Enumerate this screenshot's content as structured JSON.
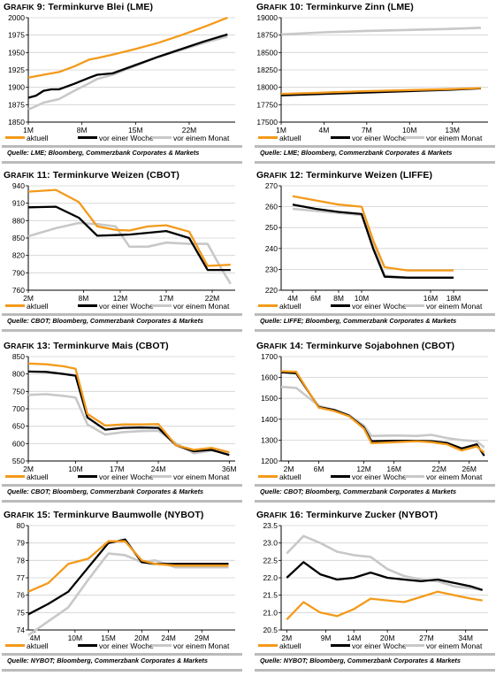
{
  "legend_labels": {
    "aktuell": "aktuell",
    "week": "vor einer Woche",
    "month": "vor einem Monat"
  },
  "colors": {
    "aktuell": "#f39a1a",
    "week": "#000000",
    "month": "#c8c8c8"
  },
  "panels": [
    {
      "prefix": "G",
      "prefix_small": "RAFIK",
      "num": " 9: ",
      "title": "Terminkurve Blei (LME)",
      "source": "Quelle: LME; Bloomberg, Commerzbank Corporates & Markets"
    },
    {
      "prefix": "G",
      "prefix_small": "RAFIK",
      "num": " 10: ",
      "title": "Terminkurve Zinn (LME)",
      "source": "Quelle: LME; Bloomberg, Commerzbank Corporates & Markets"
    },
    {
      "prefix": "G",
      "prefix_small": "RAFIK",
      "num": " 11: ",
      "title": "Terminkurve Weizen (CBOT)",
      "source": "Quelle: CBOT; Bloomberg, Commerzbank Corporates & Markets"
    },
    {
      "prefix": "G",
      "prefix_small": "RAFIK",
      "num": " 12: ",
      "title": "Terminkurve Weizen (LIFFE)",
      "source": "Quelle: LIFFE; Bloomberg, Commerzbank Corporates & Markets"
    },
    {
      "prefix": "G",
      "prefix_small": "RAFIK",
      "num": " 13:  ",
      "title": "Terminkurve Mais (CBOT)",
      "source": "Quelle: CBOT; Bloomberg, Commerzbank Corporates & Markets"
    },
    {
      "prefix": "G",
      "prefix_small": "RAFIK",
      "num": " 14: ",
      "title": "Terminkurve Sojabohnen (CBOT)",
      "source": "Quelle: CBOT; Bloomberg, Commerzbank Corporates & Markets"
    },
    {
      "prefix": "G",
      "prefix_small": "RAFIK",
      "num": " 15: ",
      "title": "Terminkurve Baumwolle (NYBOT)",
      "source": "Quelle: NYBOT; Bloomberg, Commerzbank Corporates & Markets"
    },
    {
      "prefix": "G",
      "prefix_small": "RAFIK",
      "num": " 16: ",
      "title": "Terminkurve Zucker (NYBOT)",
      "source": "Quelle: NYBOT; Bloomberg, Commerzbank Corporates & Markets"
    }
  ],
  "chart_data": [
    {
      "type": "line",
      "title": "Terminkurve Blei (LME)",
      "ylim": [
        1850,
        2000
      ],
      "yticks": [
        1850,
        1875,
        1900,
        1925,
        1950,
        1975,
        2000
      ],
      "xlim": [
        1,
        28
      ],
      "xticks": [
        1,
        8,
        15,
        22
      ],
      "xticklabels": [
        "1M",
        "8M",
        "15M",
        "22M"
      ],
      "series": [
        {
          "name": "aktuell",
          "x": [
            1,
            3,
            5,
            7,
            8,
            9,
            10,
            12,
            15,
            18,
            21,
            24,
            27
          ],
          "values": [
            1914,
            1918,
            1922,
            1930,
            1935,
            1940,
            1942,
            1947,
            1955,
            1964,
            1975,
            1987,
            2000
          ]
        },
        {
          "name": "vor einer Woche",
          "x": [
            1,
            2,
            3,
            4,
            5,
            7,
            9,
            10,
            12,
            15,
            18,
            21,
            24,
            27
          ],
          "values": [
            1885,
            1888,
            1895,
            1897,
            1897,
            1905,
            1914,
            1918,
            1920,
            1932,
            1944,
            1955,
            1966,
            1976
          ]
        },
        {
          "name": "vor einem Monat",
          "x": [
            1,
            2,
            3,
            5,
            7,
            9,
            10,
            12,
            15,
            18,
            21,
            24,
            27
          ],
          "values": [
            1868,
            1873,
            1878,
            1883,
            1895,
            1906,
            1912,
            1918,
            1931,
            1944,
            1954,
            1964,
            1973
          ]
        }
      ]
    },
    {
      "type": "line",
      "title": "Terminkurve Zinn (LME)",
      "ylim": [
        17500,
        19000
      ],
      "yticks": [
        17500,
        17750,
        18000,
        18250,
        18500,
        18750,
        19000
      ],
      "xlim": [
        1,
        15.5
      ],
      "xticks": [
        1,
        4,
        7,
        10,
        13
      ],
      "xticklabels": [
        "1M",
        "4M",
        "7M",
        "10M",
        "13M"
      ],
      "series": [
        {
          "name": "aktuell",
          "x": [
            1,
            4,
            7,
            10,
            13,
            15
          ],
          "values": [
            17905,
            17925,
            17945,
            17960,
            17975,
            17990
          ]
        },
        {
          "name": "vor einer Woche",
          "x": [
            1,
            4,
            7,
            10,
            13,
            15
          ],
          "values": [
            17885,
            17905,
            17925,
            17945,
            17965,
            17985
          ]
        },
        {
          "name": "vor einem Monat",
          "x": [
            1,
            4,
            7,
            10,
            13,
            15
          ],
          "values": [
            18760,
            18790,
            18810,
            18825,
            18840,
            18855
          ]
        }
      ]
    },
    {
      "type": "line",
      "title": "Terminkurve Weizen (CBOT)",
      "ylim": [
        760,
        940
      ],
      "yticks": [
        760,
        790,
        820,
        850,
        880,
        910,
        940
      ],
      "xlim": [
        2,
        24.5
      ],
      "xticks": [
        2,
        8,
        12,
        17,
        22
      ],
      "xticklabels": [
        "2M",
        "8M",
        "12M",
        "17M",
        "22M"
      ],
      "series": [
        {
          "name": "aktuell",
          "x": [
            2,
            5,
            7.5,
            9.5,
            11.5,
            13,
            15,
            17,
            19.5,
            21.5,
            24
          ],
          "values": [
            930,
            933,
            912,
            870,
            864,
            863,
            870,
            872,
            861,
            802,
            804
          ]
        },
        {
          "name": "vor einer Woche",
          "x": [
            2,
            5,
            7.5,
            9.5,
            11.5,
            13,
            15,
            17,
            19.5,
            21.5,
            24
          ],
          "values": [
            903,
            904,
            885,
            854,
            855,
            856,
            859,
            862,
            850,
            795,
            795
          ]
        },
        {
          "name": "vor einem Monat",
          "x": [
            2,
            5,
            7.5,
            9.5,
            11.5,
            13,
            15,
            17,
            19.5,
            21.5,
            23,
            24
          ],
          "values": [
            853,
            867,
            876,
            874,
            870,
            835,
            835,
            842,
            840,
            840,
            797,
            771
          ]
        }
      ]
    },
    {
      "type": "line",
      "title": "Terminkurve Weizen (LIFFE)",
      "ylim": [
        220,
        270
      ],
      "yticks": [
        220,
        230,
        240,
        250,
        260,
        270
      ],
      "xlim": [
        3,
        21
      ],
      "xticks": [
        4,
        6,
        8,
        10,
        16,
        18
      ],
      "xticklabels": [
        "4M",
        "6M",
        "8M",
        "10M",
        "16M",
        "18M"
      ],
      "series": [
        {
          "name": "aktuell",
          "x": [
            4,
            6,
            8,
            10,
            11,
            12,
            14,
            16,
            18
          ],
          "values": [
            265,
            263,
            261,
            260,
            244,
            231,
            229.5,
            229.5,
            229.5
          ]
        },
        {
          "name": "vor einer Woche",
          "x": [
            4,
            6,
            8,
            10,
            11,
            12,
            14,
            16,
            18
          ],
          "values": [
            261,
            259,
            257.5,
            256.5,
            240,
            226.5,
            226,
            226,
            226
          ]
        },
        {
          "name": "vor einem Monat",
          "x": [
            4,
            6,
            8,
            10,
            11,
            12,
            14,
            16,
            18
          ],
          "values": [
            259,
            258,
            257,
            256,
            242,
            227,
            226,
            226,
            226
          ]
        }
      ]
    },
    {
      "type": "line",
      "title": "Terminkurve Mais (CBOT)",
      "ylim": [
        550,
        850
      ],
      "yticks": [
        550,
        600,
        650,
        700,
        750,
        800,
        850
      ],
      "xlim": [
        2,
        37
      ],
      "xticks": [
        2,
        10,
        17,
        24,
        36
      ],
      "xticklabels": [
        "2M",
        "10M",
        "17M",
        "24M",
        "36M"
      ],
      "series": [
        {
          "name": "aktuell",
          "x": [
            2,
            5,
            8,
            10,
            12,
            15,
            18,
            21,
            24,
            27,
            30,
            33,
            36
          ],
          "values": [
            830,
            828,
            822,
            815,
            685,
            652,
            655,
            655,
            656,
            595,
            582,
            588,
            575
          ]
        },
        {
          "name": "vor einer Woche",
          "x": [
            2,
            5,
            8,
            10,
            12,
            15,
            18,
            21,
            24,
            27,
            30,
            33,
            36
          ],
          "values": [
            807,
            806,
            800,
            795,
            675,
            640,
            645,
            646,
            645,
            595,
            578,
            582,
            567
          ]
        },
        {
          "name": "vor einem Monat",
          "x": [
            2,
            5,
            8,
            10,
            12,
            15,
            18,
            21,
            24,
            27,
            30,
            33,
            36
          ],
          "values": [
            740,
            742,
            737,
            732,
            655,
            626,
            633,
            636,
            637,
            600,
            572,
            580,
            572
          ]
        }
      ]
    },
    {
      "type": "line",
      "title": "Terminkurve Sojabohnen (CBOT)",
      "ylim": [
        1200,
        1700
      ],
      "yticks": [
        1200,
        1300,
        1400,
        1500,
        1600,
        1700
      ],
      "xlim": [
        1,
        28.5
      ],
      "xticks": [
        2,
        6,
        12,
        16,
        22,
        26
      ],
      "xticklabels": [
        "2M",
        "6M",
        "12M",
        "16M",
        "22M",
        "26M"
      ],
      "series": [
        {
          "name": "aktuell",
          "x": [
            1,
            3,
            6,
            8,
            10,
            12,
            13,
            16,
            19,
            21,
            23,
            25,
            27,
            28
          ],
          "values": [
            1630,
            1627,
            1455,
            1440,
            1415,
            1355,
            1285,
            1290,
            1295,
            1290,
            1280,
            1250,
            1270,
            1240
          ]
        },
        {
          "name": "vor einer Woche",
          "x": [
            1,
            3,
            6,
            8,
            10,
            12,
            13,
            16,
            19,
            21,
            23,
            25,
            27,
            28
          ],
          "values": [
            1625,
            1620,
            1458,
            1445,
            1418,
            1360,
            1295,
            1297,
            1297,
            1295,
            1287,
            1260,
            1280,
            1225
          ]
        },
        {
          "name": "vor einem Monat",
          "x": [
            1,
            3,
            6,
            8,
            10,
            12,
            13,
            16,
            19,
            21,
            23,
            25,
            27,
            28
          ],
          "values": [
            1555,
            1550,
            1465,
            1445,
            1420,
            1370,
            1320,
            1322,
            1320,
            1325,
            1310,
            1300,
            1295,
            1265
          ]
        }
      ]
    },
    {
      "type": "line",
      "title": "Terminkurve Baumwolle (NYBOT)",
      "ylim": [
        74,
        80
      ],
      "yticks": [
        74,
        75,
        76,
        77,
        78,
        79,
        80
      ],
      "xlim": [
        3,
        34
      ],
      "xticks": [
        4,
        10,
        15,
        20,
        24,
        29
      ],
      "xticklabels": [
        "4M",
        "10M",
        "15M",
        "20M",
        "24M",
        "29M"
      ],
      "series": [
        {
          "name": "aktuell",
          "x": [
            3,
            6,
            9,
            12,
            15,
            17.5,
            20,
            22,
            25,
            28,
            31,
            33
          ],
          "values": [
            76.2,
            76.7,
            77.8,
            78.1,
            79.1,
            79.1,
            78.0,
            77.8,
            77.7,
            77.7,
            77.7,
            77.7
          ]
        },
        {
          "name": "vor einer Woche",
          "x": [
            3,
            6,
            9,
            12,
            15,
            17.5,
            20,
            22,
            25,
            28,
            31,
            33
          ],
          "values": [
            74.9,
            75.5,
            76.2,
            77.6,
            79.0,
            79.2,
            77.9,
            77.8,
            77.8,
            77.8,
            77.8,
            77.8
          ]
        },
        {
          "name": "vor einem Monat",
          "x": [
            3,
            6,
            9,
            12,
            15,
            17.5,
            20,
            22,
            25,
            28,
            31,
            33
          ],
          "values": [
            73.7,
            74.5,
            75.3,
            76.9,
            78.4,
            78.3,
            77.9,
            78.0,
            77.6,
            77.6,
            77.6,
            77.6
          ]
        }
      ]
    },
    {
      "type": "line",
      "title": "Terminkurve Zucker (NYBOT)",
      "ylim": [
        20.5,
        23.5
      ],
      "yticks": [
        20.5,
        21.0,
        21.5,
        22.0,
        22.5,
        23.0,
        23.5
      ],
      "yticklabels": [
        "20.5",
        "21.0",
        "21.5",
        "22.0",
        "22.5",
        "23.0",
        "23.5"
      ],
      "xlim": [
        1,
        38
      ],
      "xticks": [
        2,
        9,
        14,
        20,
        27,
        34
      ],
      "xticklabels": [
        "2M",
        "9M",
        "14M",
        "20M",
        "27M",
        "34M"
      ],
      "series": [
        {
          "name": "aktuell",
          "x": [
            2,
            5,
            8,
            11,
            14,
            17,
            20,
            23,
            26,
            29,
            32,
            35,
            37
          ],
          "values": [
            20.8,
            21.3,
            21.0,
            20.9,
            21.1,
            21.4,
            21.35,
            21.3,
            21.45,
            21.6,
            21.5,
            21.4,
            21.35
          ]
        },
        {
          "name": "vor einer Woche",
          "x": [
            2,
            5,
            8,
            11,
            14,
            17,
            20,
            23,
            26,
            29,
            32,
            35,
            37
          ],
          "values": [
            22.0,
            22.45,
            22.1,
            21.95,
            22.0,
            22.15,
            22.0,
            21.95,
            21.9,
            21.95,
            21.85,
            21.75,
            21.65
          ]
        },
        {
          "name": "vor einem Monat",
          "x": [
            2,
            5,
            8,
            11,
            14,
            17,
            20,
            23,
            26,
            29,
            32,
            35,
            37
          ],
          "values": [
            22.7,
            23.2,
            23.0,
            22.75,
            22.65,
            22.6,
            22.25,
            22.05,
            21.95,
            21.9,
            21.75,
            21.7,
            21.65
          ]
        }
      ]
    }
  ]
}
